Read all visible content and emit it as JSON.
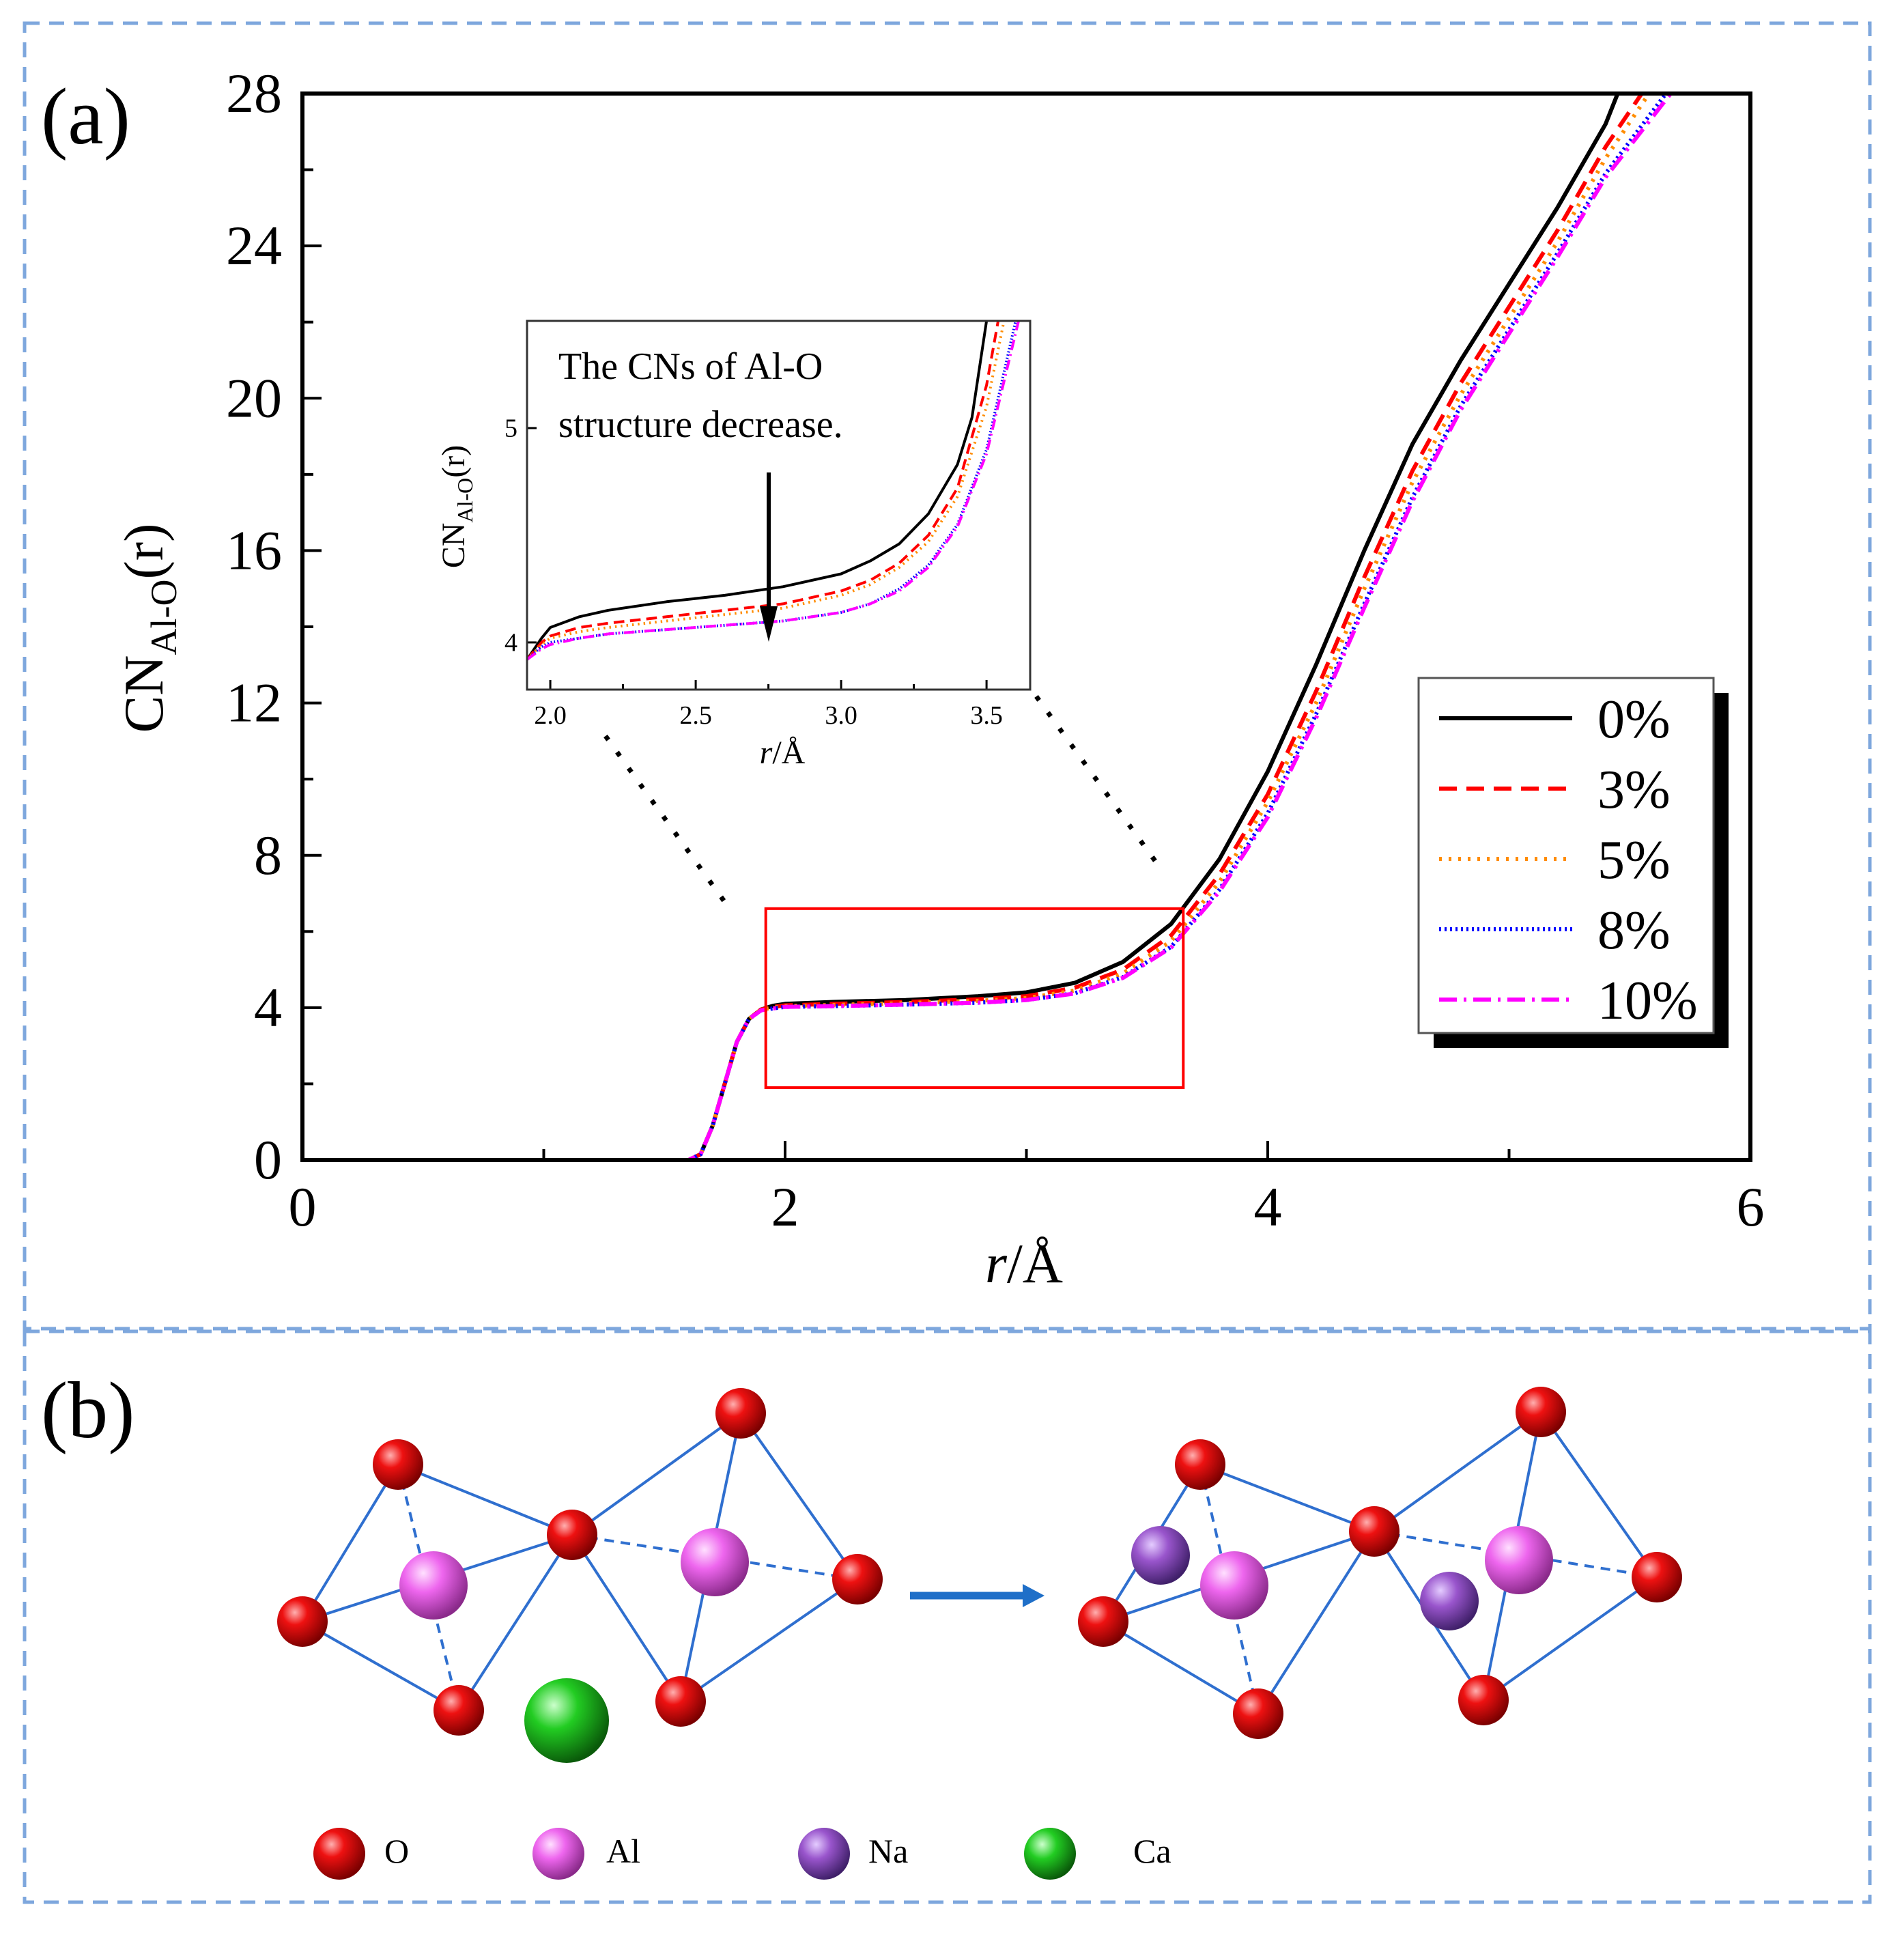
{
  "panels": {
    "a_label": "(a)",
    "b_label": "(b)"
  },
  "colors": {
    "frame": "#7ea7dd",
    "zoom_box": "#ff0000",
    "bond": "#2f6fcf",
    "arrow": "#1f6fc8",
    "O": "#ee1111",
    "Al": "#ee66ee",
    "Na": "#9955cc",
    "Ca": "#22cc22"
  },
  "chart_data": [
    {
      "type": "line",
      "title": "",
      "xlabel_italic": "r",
      "xlabel_rest": "/Å",
      "ylabel_main": "CN",
      "ylabel_sub": "Al-O",
      "ylabel_tail": "(r)",
      "xlim": [
        0,
        6
      ],
      "ylim": [
        0,
        28
      ],
      "xticks": [
        0,
        2,
        4,
        6
      ],
      "yticks": [
        0,
        4,
        8,
        12,
        16,
        20,
        24,
        28
      ],
      "legend_position": "lower-right",
      "series": [
        {
          "name": "0%",
          "color": "#000000",
          "style": "solid",
          "x": [
            0,
            1.6,
            1.65,
            1.7,
            1.75,
            1.8,
            1.85,
            1.9,
            1.95,
            2.0,
            2.2,
            2.5,
            2.8,
            3.0,
            3.2,
            3.4,
            3.6,
            3.8,
            4.0,
            4.2,
            4.4,
            4.6,
            4.8,
            5.0,
            5.2,
            5.4,
            5.45
          ],
          "y": [
            0,
            0,
            0.15,
            0.9,
            2.0,
            3.1,
            3.7,
            3.95,
            4.05,
            4.1,
            4.15,
            4.2,
            4.3,
            4.4,
            4.65,
            5.2,
            6.2,
            7.9,
            10.2,
            13.0,
            16.0,
            18.8,
            21.0,
            23.0,
            25.0,
            27.2,
            28
          ]
        },
        {
          "name": "3%",
          "color": "#ff0000",
          "style": "dashed",
          "x": [
            0,
            1.6,
            1.65,
            1.7,
            1.75,
            1.8,
            1.85,
            1.9,
            1.95,
            2.0,
            2.2,
            2.5,
            2.8,
            3.0,
            3.2,
            3.4,
            3.6,
            3.8,
            4.0,
            4.2,
            4.4,
            4.6,
            4.8,
            5.0,
            5.2,
            5.4,
            5.55
          ],
          "y": [
            0,
            0,
            0.15,
            0.9,
            2.0,
            3.1,
            3.7,
            3.95,
            4.02,
            4.06,
            4.1,
            4.15,
            4.22,
            4.3,
            4.52,
            5.0,
            5.9,
            7.5,
            9.6,
            12.3,
            15.3,
            18.1,
            20.4,
            22.4,
            24.4,
            26.6,
            28
          ]
        },
        {
          "name": "5%",
          "color": "#ff8c00",
          "style": "dotted",
          "x": [
            0,
            1.6,
            1.65,
            1.7,
            1.75,
            1.8,
            1.85,
            1.9,
            1.95,
            2.0,
            2.2,
            2.5,
            2.8,
            3.0,
            3.2,
            3.4,
            3.6,
            3.8,
            4.0,
            4.2,
            4.4,
            4.6,
            4.8,
            5.0,
            5.2,
            5.4,
            5.58
          ],
          "y": [
            0,
            0,
            0.15,
            0.9,
            2.0,
            3.1,
            3.7,
            3.95,
            4.0,
            4.04,
            4.07,
            4.12,
            4.18,
            4.25,
            4.45,
            4.9,
            5.75,
            7.3,
            9.4,
            12.0,
            15.0,
            17.8,
            20.1,
            22.1,
            24.1,
            26.3,
            28
          ]
        },
        {
          "name": "8%",
          "color": "#0000ff",
          "style": "dotted-fine",
          "x": [
            0,
            1.6,
            1.65,
            1.7,
            1.75,
            1.8,
            1.85,
            1.9,
            1.95,
            2.0,
            2.2,
            2.5,
            2.8,
            3.0,
            3.2,
            3.4,
            3.6,
            3.8,
            4.0,
            4.2,
            4.4,
            4.6,
            4.8,
            5.0,
            5.2,
            5.4,
            5.65
          ],
          "y": [
            0,
            0,
            0.15,
            0.9,
            2.0,
            3.1,
            3.7,
            3.93,
            3.98,
            4.02,
            4.04,
            4.08,
            4.13,
            4.2,
            4.38,
            4.8,
            5.6,
            7.1,
            9.1,
            11.7,
            14.6,
            17.4,
            19.8,
            21.8,
            23.8,
            25.9,
            28
          ]
        },
        {
          "name": "10%",
          "color": "#ff00ff",
          "style": "dashdot",
          "x": [
            0,
            1.6,
            1.65,
            1.7,
            1.75,
            1.8,
            1.85,
            1.9,
            1.95,
            2.0,
            2.2,
            2.5,
            2.8,
            3.0,
            3.2,
            3.4,
            3.6,
            3.8,
            4.0,
            4.2,
            4.4,
            4.6,
            4.8,
            5.0,
            5.2,
            5.4,
            5.67
          ],
          "y": [
            0,
            0,
            0.15,
            0.9,
            2.0,
            3.1,
            3.7,
            3.93,
            3.98,
            4.02,
            4.04,
            4.08,
            4.13,
            4.2,
            4.37,
            4.78,
            5.58,
            7.05,
            9.0,
            11.6,
            14.5,
            17.3,
            19.7,
            21.7,
            23.7,
            25.8,
            28
          ]
        }
      ],
      "zoom_region": {
        "x": [
          1.92,
          3.65
        ],
        "y": [
          1.9,
          6.6
        ]
      }
    },
    {
      "type": "line",
      "title": "",
      "annotation": [
        "The CNs of Al-O",
        "structure decrease."
      ],
      "xlabel_italic": "r",
      "xlabel_rest": "/Å",
      "ylabel_main": "CN",
      "ylabel_sub": "Al-O",
      "ylabel_tail": "(r)",
      "xlim": [
        1.92,
        3.65
      ],
      "ylim": [
        3.78,
        5.5
      ],
      "xticks": [
        2.0,
        2.5,
        3.0,
        3.5
      ],
      "xtick_labels": [
        "2.0",
        "2.5",
        "3.0",
        "3.5"
      ],
      "yticks": [
        4,
        5
      ],
      "ytick_labels": [
        "4",
        "5"
      ],
      "series": [
        {
          "name": "0%",
          "color": "#000000",
          "style": "solid",
          "x": [
            1.92,
            1.97,
            2.0,
            2.1,
            2.2,
            2.4,
            2.6,
            2.8,
            3.0,
            3.1,
            3.2,
            3.3,
            3.4,
            3.45,
            3.5
          ],
          "y": [
            3.92,
            4.02,
            4.07,
            4.12,
            4.15,
            4.19,
            4.22,
            4.26,
            4.32,
            4.38,
            4.46,
            4.6,
            4.83,
            5.05,
            5.5
          ]
        },
        {
          "name": "3%",
          "color": "#ff0000",
          "style": "dashed",
          "x": [
            1.92,
            1.97,
            2.0,
            2.1,
            2.2,
            2.4,
            2.6,
            2.8,
            3.0,
            3.1,
            3.2,
            3.3,
            3.4,
            3.5,
            3.54
          ],
          "y": [
            3.92,
            4.0,
            4.03,
            4.07,
            4.09,
            4.12,
            4.15,
            4.18,
            4.24,
            4.29,
            4.37,
            4.5,
            4.72,
            5.2,
            5.5
          ]
        },
        {
          "name": "5%",
          "color": "#ff8c00",
          "style": "dotted",
          "x": [
            1.92,
            1.97,
            2.0,
            2.1,
            2.2,
            2.4,
            2.6,
            2.8,
            3.0,
            3.1,
            3.2,
            3.3,
            3.4,
            3.5,
            3.56
          ],
          "y": [
            3.92,
            3.99,
            4.02,
            4.05,
            4.07,
            4.1,
            4.13,
            4.16,
            4.22,
            4.27,
            4.35,
            4.47,
            4.68,
            5.1,
            5.5
          ]
        },
        {
          "name": "8%",
          "color": "#0000ff",
          "style": "dotted-fine",
          "x": [
            1.92,
            1.97,
            2.0,
            2.1,
            2.2,
            2.4,
            2.6,
            2.8,
            3.0,
            3.1,
            3.2,
            3.3,
            3.4,
            3.5,
            3.6
          ],
          "y": [
            3.92,
            3.98,
            4.0,
            4.02,
            4.04,
            4.06,
            4.08,
            4.1,
            4.14,
            4.18,
            4.25,
            4.36,
            4.55,
            4.9,
            5.5
          ]
        },
        {
          "name": "10%",
          "color": "#ff00ff",
          "style": "dashdot",
          "x": [
            1.92,
            1.97,
            2.0,
            2.1,
            2.2,
            2.4,
            2.6,
            2.8,
            3.0,
            3.1,
            3.2,
            3.3,
            3.4,
            3.5,
            3.61
          ],
          "y": [
            3.92,
            3.97,
            3.99,
            4.02,
            4.04,
            4.06,
            4.08,
            4.1,
            4.14,
            4.18,
            4.24,
            4.35,
            4.54,
            4.88,
            5.5
          ]
        }
      ]
    }
  ],
  "panel_b": {
    "legend": [
      {
        "symbol": "O",
        "label": "O"
      },
      {
        "symbol": "Al",
        "label": "Al"
      },
      {
        "symbol": "Na",
        "label": "Na"
      },
      {
        "symbol": "Ca",
        "label": "Ca"
      }
    ],
    "left_structure": {
      "atoms": [
        "O",
        "O",
        "O",
        "O",
        "O",
        "O",
        "O",
        "Al",
        "Al",
        "Ca"
      ]
    },
    "right_structure": {
      "atoms": [
        "O",
        "O",
        "O",
        "O",
        "O",
        "O",
        "O",
        "Al",
        "Al",
        "Na",
        "Na"
      ]
    }
  }
}
